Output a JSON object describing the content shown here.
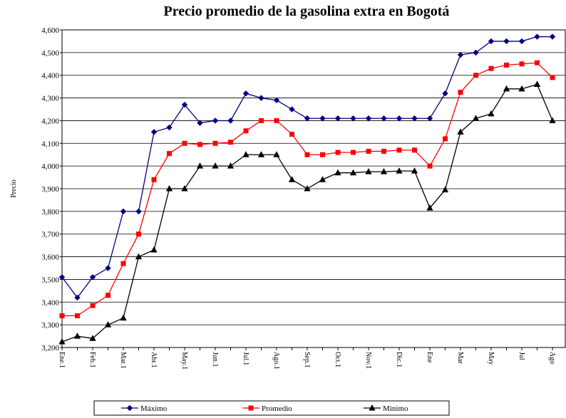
{
  "chart_data": {
    "type": "line",
    "title": "Precio promedio de la gasolina extra en Bogotá",
    "y_label": "Precio",
    "categories": [
      "Ene.1",
      null,
      "Feb.1",
      null,
      "Mar.1",
      null,
      "Abr.1",
      null,
      "May.1",
      null,
      "Jun.1",
      null,
      "Jul.1",
      null,
      "Ago.1",
      null,
      "Sep.1",
      null,
      "Oct.1",
      null,
      "Nov.1",
      null,
      "Dic.1",
      null,
      "Ene",
      null,
      "Mar",
      null,
      "May",
      null,
      "Jul",
      null,
      "Ago"
    ],
    "series": [
      {
        "name": "Máximo",
        "color": "#000080",
        "marker": "diamond",
        "values": [
          3510,
          3420,
          3510,
          3550,
          3800,
          3800,
          4150,
          4170,
          4270,
          4190,
          4200,
          4200,
          4320,
          4300,
          4290,
          4250,
          4210,
          4210,
          4210,
          4210,
          4210,
          4210,
          4210,
          4210,
          4210,
          4320,
          4490,
          4500,
          4550,
          4550,
          4550,
          4570,
          4570
        ]
      },
      {
        "name": "Promedio",
        "color": "#ff0000",
        "marker": "square",
        "values": [
          3340,
          3340,
          3385,
          3430,
          3570,
          3700,
          3940,
          4055,
          4100,
          4095,
          4100,
          4105,
          4155,
          4200,
          4200,
          4140,
          4050,
          4050,
          4060,
          4060,
          4065,
          4065,
          4070,
          4070,
          4000,
          4120,
          4325,
          4400,
          4430,
          4445,
          4450,
          4455,
          4390
        ]
      },
      {
        "name": "Mínimo",
        "color": "#000000",
        "marker": "triangle",
        "values": [
          3225,
          3250,
          3240,
          3300,
          3330,
          3600,
          3630,
          3900,
          3900,
          4000,
          4000,
          4000,
          4050,
          4050,
          4050,
          3940,
          3900,
          3940,
          3970,
          3970,
          3975,
          3975,
          3978,
          3978,
          3815,
          3895,
          4150,
          4210,
          4230,
          4340,
          4340,
          4360,
          4200
        ]
      }
    ],
    "ylim": [
      3200,
      4600
    ],
    "yticks": [
      {
        "value": 3200,
        "label": "3,200"
      },
      {
        "value": 3300,
        "label": "3,300"
      },
      {
        "value": 3400,
        "label": "3,400"
      },
      {
        "value": 3500,
        "label": "3,500"
      },
      {
        "value": 3600,
        "label": "3,600"
      },
      {
        "value": 3700,
        "label": "3,700"
      },
      {
        "value": 3800,
        "label": "3,800"
      },
      {
        "value": 3900,
        "label": "3,900"
      },
      {
        "value": 4000,
        "label": "4,000"
      },
      {
        "value": 4100,
        "label": "4,100"
      },
      {
        "value": 4200,
        "label": "4,200"
      },
      {
        "value": 4300,
        "label": "4,300"
      },
      {
        "value": 4400,
        "label": "4,400"
      },
      {
        "value": 4500,
        "label": "4,500"
      },
      {
        "value": 4600,
        "label": "4,600"
      }
    ],
    "grid": true,
    "legend": "bottom"
  }
}
